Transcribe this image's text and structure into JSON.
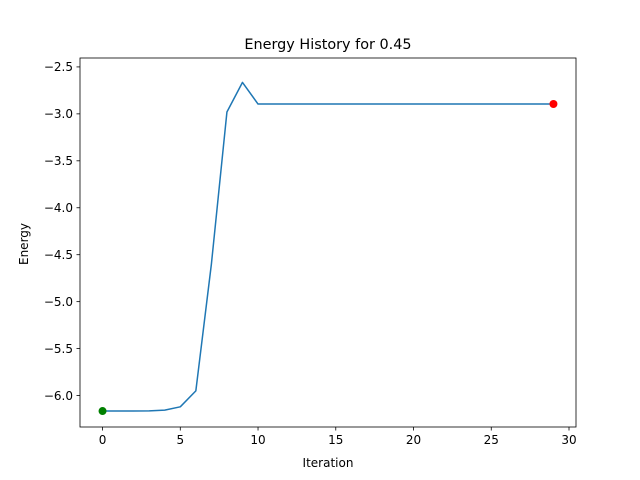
{
  "chart_data": {
    "type": "line",
    "title": "Energy History for 0.45",
    "xlabel": "Iteration",
    "ylabel": "Energy",
    "xlim": [
      -1.45,
      30.45
    ],
    "ylim": [
      -6.335,
      -2.405
    ],
    "xticks": [
      0,
      5,
      10,
      15,
      20,
      25,
      30
    ],
    "xtick_labels": [
      "0",
      "5",
      "10",
      "15",
      "20",
      "25",
      "30"
    ],
    "yticks": [
      -6.0,
      -5.5,
      -5.0,
      -4.5,
      -4.0,
      -3.5,
      -3.0,
      -2.5
    ],
    "ytick_labels": [
      "−6.0",
      "−5.5",
      "−5.0",
      "−4.5",
      "−4.0",
      "−3.5",
      "−3.0",
      "−2.5"
    ],
    "grid": false,
    "series": [
      {
        "x": [
          0,
          1,
          2,
          3,
          4,
          5,
          6,
          7,
          8,
          9,
          10,
          11,
          12,
          13,
          14,
          15,
          16,
          17,
          18,
          19,
          20,
          21,
          22,
          23,
          24,
          25,
          26,
          27,
          28,
          29
        ],
        "values": [
          -6.165,
          -6.165,
          -6.165,
          -6.163,
          -6.155,
          -6.12,
          -5.95,
          -4.6,
          -2.98,
          -2.665,
          -2.895,
          -2.895,
          -2.895,
          -2.895,
          -2.895,
          -2.895,
          -2.895,
          -2.895,
          -2.895,
          -2.895,
          -2.895,
          -2.895,
          -2.895,
          -2.895,
          -2.895,
          -2.895,
          -2.895,
          -2.895,
          -2.895,
          -2.895
        ],
        "color": "#1f77b4"
      }
    ],
    "markers": [
      {
        "x": 0,
        "y": -6.165,
        "color": "#008000"
      },
      {
        "x": 29,
        "y": -2.895,
        "color": "#ff0000"
      }
    ]
  }
}
